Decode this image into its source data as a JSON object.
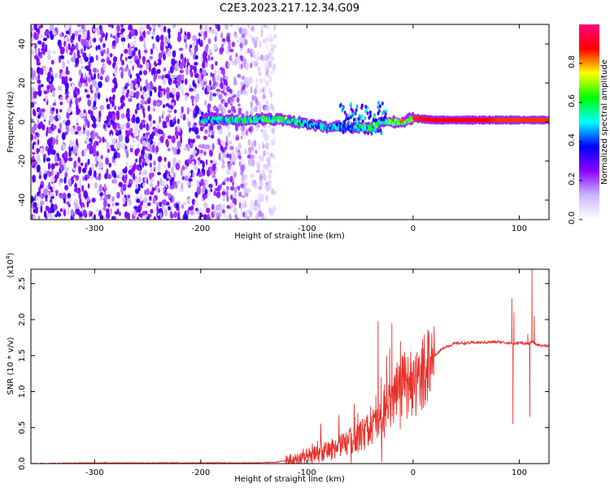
{
  "figure_title": "C2E3.2023.217.12.34.G09",
  "chart_data": [
    {
      "type": "heatmap",
      "title": "",
      "xlabel": "Height of straight line (km)",
      "ylabel": "Frequency (Hz)",
      "xlim": [
        -360,
        128
      ],
      "ylim": [
        -50,
        50
      ],
      "xticks": [
        -300,
        -200,
        -100,
        0,
        100
      ],
      "yticks": [
        -40,
        -20,
        0,
        20,
        40
      ],
      "colorbar": {
        "label": "Normalized spectral amplitude",
        "range": [
          0.0,
          1.0
        ],
        "ticks": [
          "0.0",
          "0.2",
          "0.4",
          "0.6",
          "0.8"
        ],
        "colors": [
          "#ffffff",
          "#c9b8ff",
          "#8a00ff",
          "#0000ff",
          "#00ffff",
          "#00ff00",
          "#ffff00",
          "#ff0000",
          "#ff0080"
        ]
      },
      "features": [
        {
          "name": "noise",
          "x_range": [
            -360,
            -130
          ],
          "y_range": [
            -50,
            50
          ]
        },
        {
          "name": "signal_band",
          "x_range": [
            -200,
            128
          ],
          "y_center": 1
        }
      ],
      "signal_track": {
        "x": [
          -200,
          -180,
          -160,
          -140,
          -120,
          -100,
          -90,
          -80,
          -70,
          -60,
          -50,
          -40,
          -30,
          -20,
          -10,
          0,
          20,
          40,
          60,
          80,
          100,
          128
        ],
        "y": [
          1,
          1,
          1,
          1.5,
          1,
          -1,
          -2,
          -3,
          -2,
          -3,
          -3,
          -3,
          0,
          0,
          0,
          2,
          1,
          1,
          1,
          1,
          1,
          1
        ],
        "level": [
          0.6,
          0.65,
          0.65,
          0.7,
          0.75,
          0.6,
          0.55,
          0.55,
          0.6,
          0.6,
          0.65,
          0.75,
          0.8,
          0.85,
          0.9,
          0.9,
          0.95,
          0.95,
          0.95,
          0.9,
          0.9,
          0.9
        ]
      }
    },
    {
      "type": "line",
      "title": "",
      "xlabel": "Height of straight line (km)",
      "ylabel": "SNR (10 * v/v)",
      "yscale_label": "(x10",
      "yscale_exp": "4",
      "yscale_close": ")",
      "xlim": [
        -360,
        128
      ],
      "ylim": [
        0,
        2.7
      ],
      "xticks": [
        -300,
        -200,
        -100,
        0,
        100
      ],
      "yticks": [
        "0.0",
        "0.5",
        "1.0",
        "1.5",
        "2.0",
        "2.5"
      ],
      "color": "#e8322c",
      "series": [
        {
          "x": [
            -360,
            -300,
            -250,
            -200,
            -150,
            -130,
            -120,
            -110,
            -100,
            -90,
            -80,
            -70,
            -60,
            -50,
            -45,
            -40,
            -35,
            -30,
            -25,
            -20,
            -15,
            -10,
            -5,
            0,
            5,
            10,
            20,
            30,
            40,
            60,
            80,
            90,
            95,
            100,
            110,
            112,
            115,
            120,
            128
          ],
          "values": [
            0.0,
            0.01,
            0.01,
            0.01,
            0.01,
            0.02,
            0.04,
            0.07,
            0.1,
            0.13,
            0.18,
            0.24,
            0.3,
            0.38,
            0.45,
            0.5,
            0.55,
            0.6,
            0.7,
            0.85,
            0.95,
            1.05,
            1.05,
            1.1,
            1.15,
            1.3,
            1.5,
            1.62,
            1.67,
            1.68,
            1.69,
            1.68,
            1.66,
            1.68,
            1.66,
            1.7,
            1.66,
            1.64,
            1.64
          ]
        }
      ],
      "spikes": {
        "x": [
          -95,
          -90,
          -80,
          -55,
          -52,
          -48,
          -40,
          -35,
          -33,
          -30,
          -27,
          -25,
          -22,
          -20,
          -18,
          -15,
          -12,
          -10,
          -8,
          -5,
          0,
          2,
          10,
          93,
          94,
          95,
          108,
          110,
          112,
          114
        ],
        "values": [
          0.28,
          0.32,
          0.3,
          0.65,
          0.7,
          0.6,
          0.8,
          0.95,
          1.98,
          1.2,
          1.1,
          1.5,
          1.6,
          1.95,
          1.2,
          1.4,
          1.7,
          1.5,
          1.55,
          1.2,
          1.25,
          1.35,
          1.6,
          2.3,
          0.55,
          2.1,
          1.8,
          0.65,
          2.7,
          2.05
        ]
      }
    }
  ]
}
